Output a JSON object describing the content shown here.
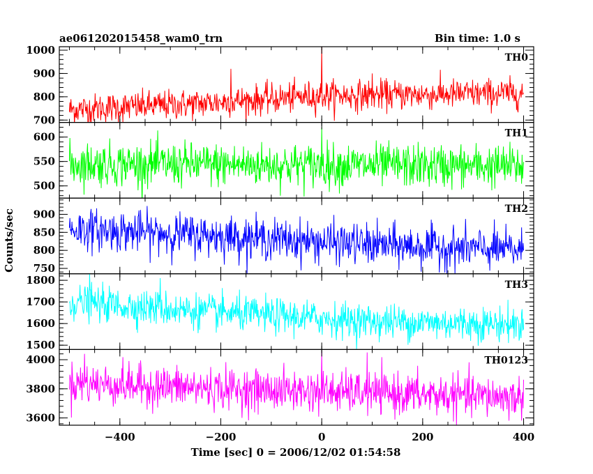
{
  "chart_data": {
    "type": "line",
    "title": "ae061202015458_wam0_trn",
    "subtitle": "Bin time: 1.0 s",
    "xlabel": "Time [sec] 0 = 2006/12/02 01:54:58",
    "ylabel": "Counts/sec",
    "xlim": [
      -520,
      420
    ],
    "x_tick_labels": [
      "−400",
      "−200",
      "0",
      "200",
      "400"
    ],
    "x_ticks": [
      -400,
      -200,
      0,
      200,
      400
    ],
    "x_range": [
      -500,
      400
    ],
    "bin_time_s": 1.0,
    "grid": false,
    "series": [
      {
        "name": "TH0",
        "color": "#ff0000",
        "ylim": [
          690,
          1015
        ],
        "y_ticks": [
          700,
          800,
          900,
          1000
        ],
        "y_tick_labels": [
          "700",
          "800",
          "900",
          "1000"
        ],
        "trend": [
          [
            -500,
            745
          ],
          [
            -250,
            770
          ],
          [
            0,
            805
          ],
          [
            400,
            815
          ]
        ],
        "noise_sd": 32,
        "spikes": [
          [
            0,
            1020
          ],
          [
            -180,
            920
          ],
          [
            100,
            900
          ]
        ]
      },
      {
        "name": "TH1",
        "color": "#00ff00",
        "ylim": [
          475,
          630
        ],
        "y_ticks": [
          500,
          550,
          600
        ],
        "y_tick_labels": [
          "500",
          "550",
          "600"
        ],
        "trend": [
          [
            -500,
            545
          ],
          [
            400,
            540
          ]
        ],
        "noise_sd": 22,
        "spikes": [
          [
            0,
            620
          ]
        ]
      },
      {
        "name": "TH2",
        "color": "#0000ff",
        "ylim": [
          735,
          945
        ],
        "y_ticks": [
          750,
          800,
          850,
          900
        ],
        "y_tick_labels": [
          "750",
          "800",
          "850",
          "900"
        ],
        "trend": [
          [
            -500,
            860
          ],
          [
            -200,
            840
          ],
          [
            100,
            815
          ],
          [
            400,
            800
          ]
        ],
        "noise_sd": 28,
        "spikes": []
      },
      {
        "name": "TH3",
        "color": "#00ffff",
        "ylim": [
          1480,
          1830
        ],
        "y_ticks": [
          1500,
          1600,
          1700,
          1800
        ],
        "y_tick_labels": [
          "1500",
          "1600",
          "1700",
          "1800"
        ],
        "trend": [
          [
            -500,
            1700
          ],
          [
            -200,
            1650
          ],
          [
            100,
            1610
          ],
          [
            400,
            1595
          ]
        ],
        "noise_sd": 40,
        "spikes": [
          [
            -460,
            1830
          ],
          [
            -320,
            1810
          ]
        ]
      },
      {
        "name": "TH0123",
        "color": "#ff00ff",
        "ylim": [
          3550,
          4070
        ],
        "y_ticks": [
          3600,
          3800,
          4000
        ],
        "y_tick_labels": [
          "3600",
          "3800",
          "4000"
        ],
        "trend": [
          [
            -500,
            3840
          ],
          [
            -200,
            3800
          ],
          [
            100,
            3770
          ],
          [
            400,
            3740
          ]
        ],
        "noise_sd": 70,
        "spikes": [
          [
            0,
            4060
          ],
          [
            90,
            4050
          ],
          [
            -470,
            4040
          ]
        ]
      }
    ]
  }
}
